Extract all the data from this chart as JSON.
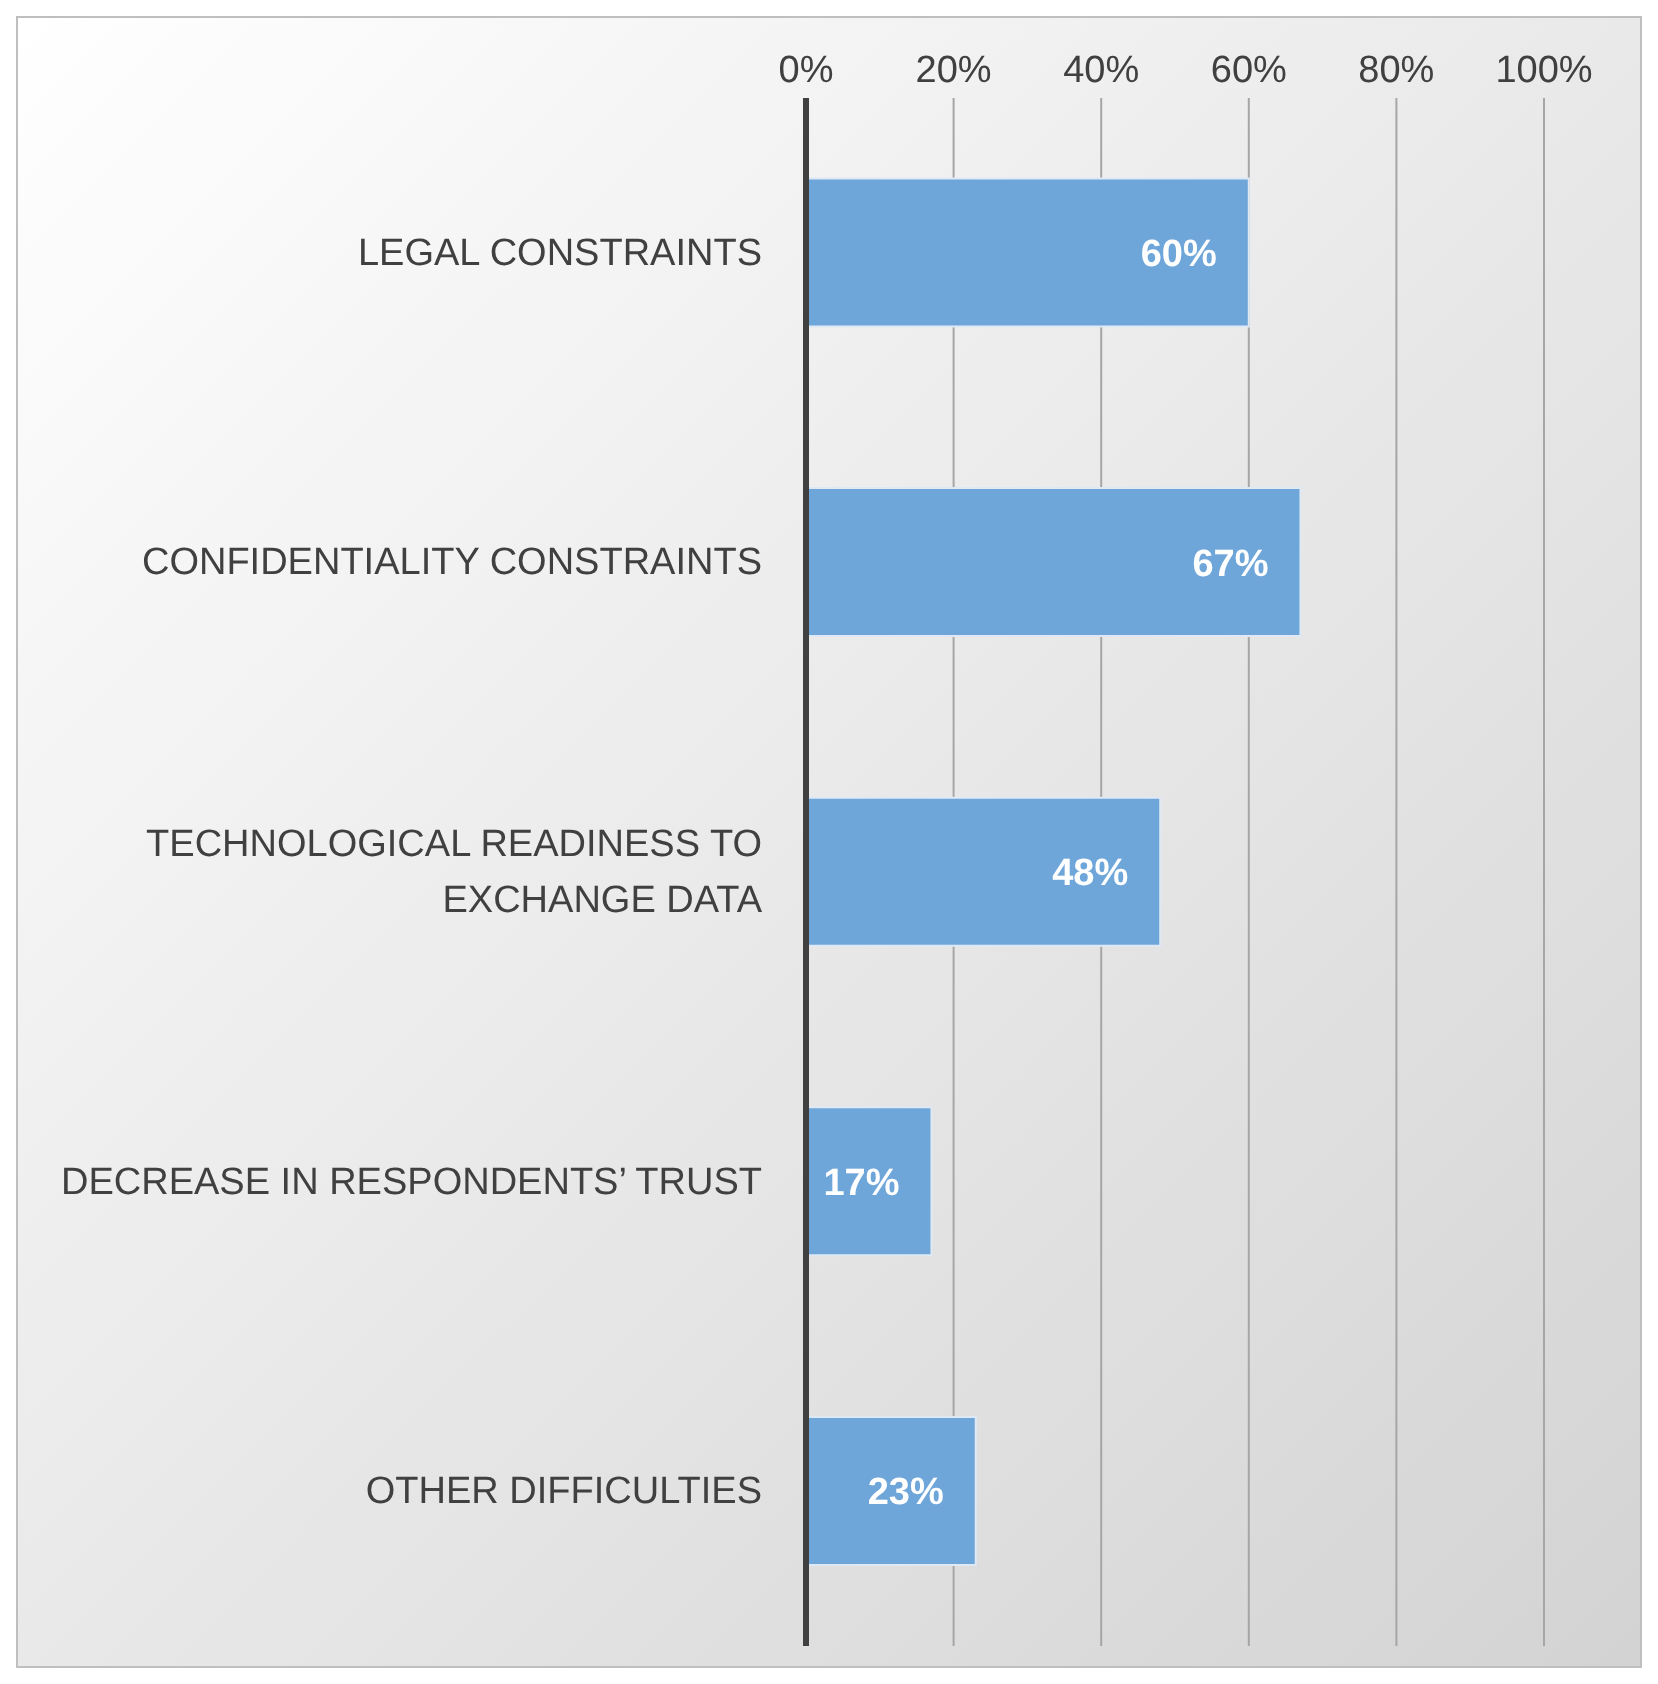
{
  "chart_data": {
    "type": "bar",
    "orientation": "horizontal",
    "categories": [
      "LEGAL CONSTRAINTS",
      "CONFIDENTIALITY CONSTRAINTS",
      "TECHNOLOGICAL READINESS TO EXCHANGE DATA",
      "DECREASE IN RESPONDENTS’ TRUST",
      "OTHER DIFFICULTIES"
    ],
    "values": [
      60,
      67,
      48,
      17,
      23
    ],
    "value_labels": [
      "60%",
      "67%",
      "48%",
      "17%",
      "23%"
    ],
    "color": "#6fa6da",
    "xlim": [
      0,
      100
    ],
    "xticks": [
      {
        "value": 0,
        "label": "0%"
      },
      {
        "value": 20,
        "label": "20%"
      },
      {
        "value": 40,
        "label": "40%"
      },
      {
        "value": 60,
        "label": "60%"
      },
      {
        "value": 80,
        "label": "80%"
      },
      {
        "value": 100,
        "label": "100%"
      }
    ],
    "grid": "x",
    "legend": false
  }
}
